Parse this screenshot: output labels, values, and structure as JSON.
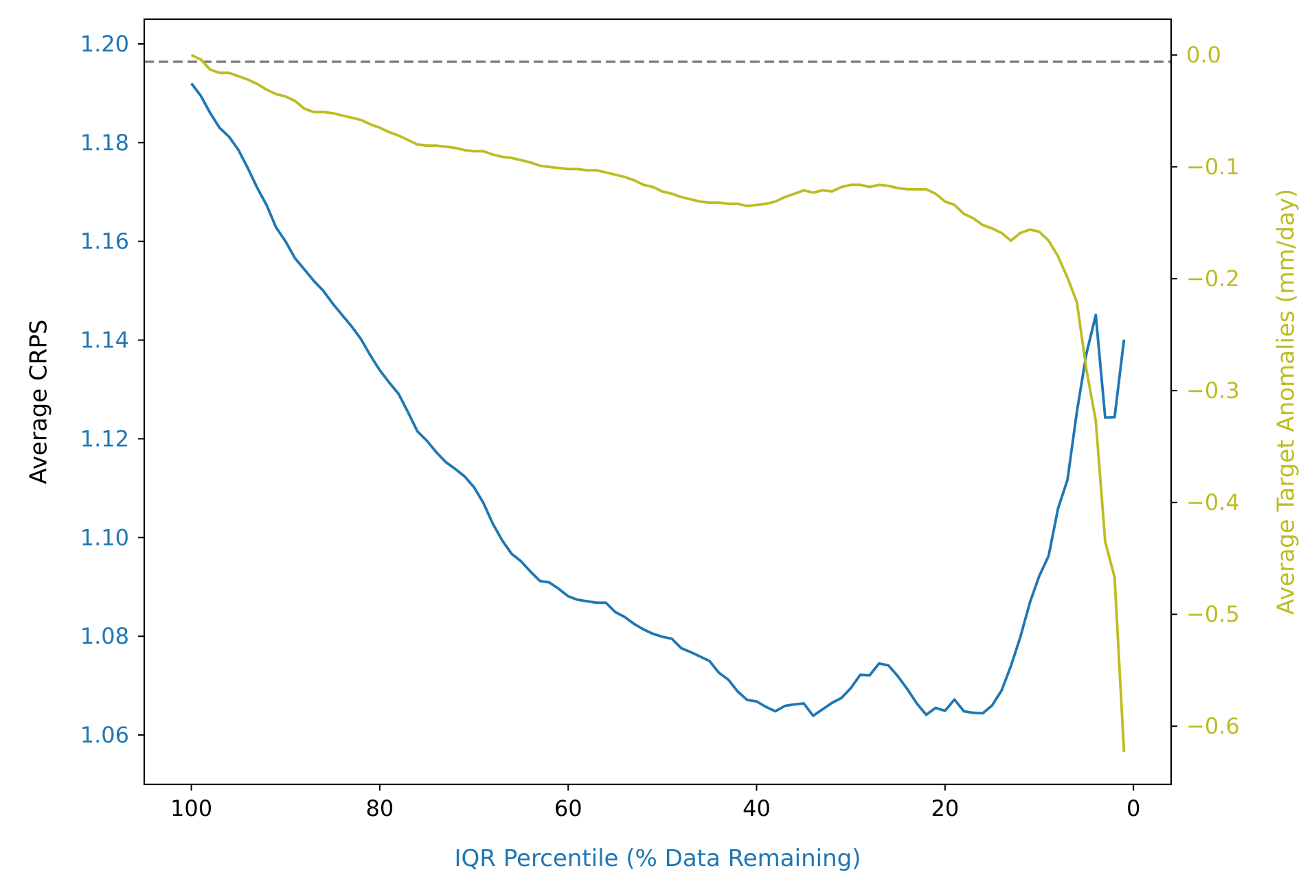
{
  "chart_data": {
    "type": "line",
    "xlabel": "IQR Percentile (% Data Remaining)",
    "ylabel_left": "Average CRPS",
    "ylabel_right": "Average Target Anomalies (mm/day)",
    "xlim": [
      105,
      -4
    ],
    "ylim_left": [
      1.05,
      1.205
    ],
    "ylim_right": [
      -0.652,
      0.032
    ],
    "x_ticks": [
      100,
      80,
      60,
      40,
      20,
      0
    ],
    "y_ticks_left": [
      1.06,
      1.08,
      1.1,
      1.12,
      1.14,
      1.16,
      1.18,
      1.2
    ],
    "y_ticks_right": [
      0.0,
      -0.1,
      -0.2,
      -0.3,
      -0.4,
      -0.5,
      -0.6
    ],
    "x_tick_labels": [
      "100",
      "80",
      "60",
      "40",
      "20",
      "0"
    ],
    "y_tick_labels_left": [
      "1.06",
      "1.08",
      "1.10",
      "1.12",
      "1.14",
      "1.16",
      "1.18",
      "1.20"
    ],
    "y_tick_labels_right": [
      "−0.6",
      "−0.5",
      "−0.4",
      "−0.3",
      "−0.2",
      "−0.1",
      "0.0"
    ],
    "grid": false,
    "reference_line": {
      "axis": "right",
      "y": -0.006,
      "style": "dashed",
      "color": "#808080"
    },
    "colors": {
      "left": "#1f77b4",
      "right": "#bcbd22",
      "xlabel": "#1f77b4",
      "ylabel_left": "#000000"
    },
    "series": [
      {
        "axis": "left",
        "color": "#1f77b4",
        "x": [
          100,
          99,
          98,
          97,
          96,
          95,
          94,
          93,
          92,
          91,
          90,
          89,
          88,
          87,
          86,
          85,
          84,
          83,
          82,
          81,
          80,
          79,
          78,
          77,
          76,
          75,
          74,
          73,
          72,
          71,
          70,
          69,
          68,
          67,
          66,
          65,
          64,
          63,
          62,
          61,
          60,
          59,
          58,
          57,
          56,
          55,
          54,
          53,
          52,
          51,
          50,
          49,
          48,
          47,
          46,
          45,
          44,
          43,
          42,
          41,
          40,
          39,
          38,
          37,
          36,
          35,
          34,
          33,
          32,
          31,
          30,
          29,
          28,
          27,
          26,
          25,
          24,
          23,
          22,
          21,
          20,
          19,
          18,
          17,
          16,
          15,
          14,
          13,
          12,
          11,
          10,
          9,
          8,
          7,
          6,
          5,
          4,
          3,
          2,
          1
        ],
        "values": [
          1.192,
          1.1895,
          1.186,
          1.183,
          1.1812,
          1.1785,
          1.1748,
          1.1708,
          1.1673,
          1.1628,
          1.16,
          1.1566,
          1.1543,
          1.152,
          1.15,
          1.1474,
          1.1451,
          1.1428,
          1.1402,
          1.1369,
          1.1339,
          1.1314,
          1.1291,
          1.1254,
          1.1215,
          1.1196,
          1.1173,
          1.1153,
          1.1139,
          1.1124,
          1.1102,
          1.107,
          1.1028,
          1.0994,
          1.0967,
          1.0952,
          1.0931,
          1.0912,
          1.0909,
          1.0896,
          1.0881,
          1.0874,
          1.0871,
          1.0868,
          1.0868,
          1.0849,
          1.0839,
          1.0825,
          1.0814,
          1.0805,
          1.0799,
          1.0795,
          1.0776,
          1.0768,
          1.0759,
          1.075,
          1.0726,
          1.0712,
          1.0688,
          1.0671,
          1.0668,
          1.0657,
          1.0648,
          1.0659,
          1.0662,
          1.0664,
          1.0639,
          1.0652,
          1.0665,
          1.0675,
          1.0695,
          1.0722,
          1.0721,
          1.0745,
          1.0741,
          1.0719,
          1.0693,
          1.0664,
          1.0641,
          1.0655,
          1.0649,
          1.0672,
          1.0648,
          1.0645,
          1.0644,
          1.066,
          1.069,
          1.074,
          1.0799,
          1.0868,
          1.0922,
          1.0963,
          1.1059,
          1.1117,
          1.1255,
          1.1372,
          1.1451,
          1.1243,
          1.1244,
          1.1401
        ]
      },
      {
        "axis": "right",
        "color": "#bcbd22",
        "x": [
          100,
          99,
          98,
          97,
          96,
          95,
          94,
          93,
          92,
          91,
          90,
          89,
          88,
          87,
          86,
          85,
          84,
          83,
          82,
          81,
          80,
          79,
          78,
          77,
          76,
          75,
          74,
          73,
          72,
          71,
          70,
          69,
          68,
          67,
          66,
          65,
          64,
          63,
          62,
          61,
          60,
          59,
          58,
          57,
          56,
          55,
          54,
          53,
          52,
          51,
          50,
          49,
          48,
          47,
          46,
          45,
          44,
          43,
          42,
          41,
          40,
          39,
          38,
          37,
          36,
          35,
          34,
          33,
          32,
          31,
          30,
          29,
          28,
          27,
          26,
          25,
          24,
          23,
          22,
          21,
          20,
          19,
          18,
          17,
          16,
          15,
          14,
          13,
          12,
          11,
          10,
          9,
          8,
          7,
          6,
          5,
          4,
          3,
          2,
          1
        ],
        "values": [
          0.0,
          -0.004,
          -0.013,
          -0.016,
          -0.016,
          -0.019,
          -0.022,
          -0.026,
          -0.031,
          -0.035,
          -0.037,
          -0.041,
          -0.048,
          -0.051,
          -0.051,
          -0.052,
          -0.054,
          -0.056,
          -0.058,
          -0.062,
          -0.065,
          -0.069,
          -0.072,
          -0.076,
          -0.08,
          -0.081,
          -0.081,
          -0.082,
          -0.083,
          -0.085,
          -0.086,
          -0.086,
          -0.089,
          -0.091,
          -0.092,
          -0.094,
          -0.096,
          -0.099,
          -0.1,
          -0.101,
          -0.102,
          -0.102,
          -0.103,
          -0.103,
          -0.105,
          -0.107,
          -0.109,
          -0.112,
          -0.116,
          -0.118,
          -0.122,
          -0.124,
          -0.127,
          -0.129,
          -0.131,
          -0.132,
          -0.132,
          -0.133,
          -0.133,
          -0.135,
          -0.134,
          -0.133,
          -0.131,
          -0.127,
          -0.124,
          -0.121,
          -0.123,
          -0.121,
          -0.122,
          -0.118,
          -0.116,
          -0.116,
          -0.118,
          -0.116,
          -0.117,
          -0.119,
          -0.12,
          -0.12,
          -0.12,
          -0.124,
          -0.131,
          -0.134,
          -0.142,
          -0.146,
          -0.152,
          -0.155,
          -0.159,
          -0.166,
          -0.159,
          -0.156,
          -0.158,
          -0.166,
          -0.18,
          -0.199,
          -0.221,
          -0.281,
          -0.327,
          -0.435,
          -0.467,
          -0.623
        ]
      }
    ]
  }
}
